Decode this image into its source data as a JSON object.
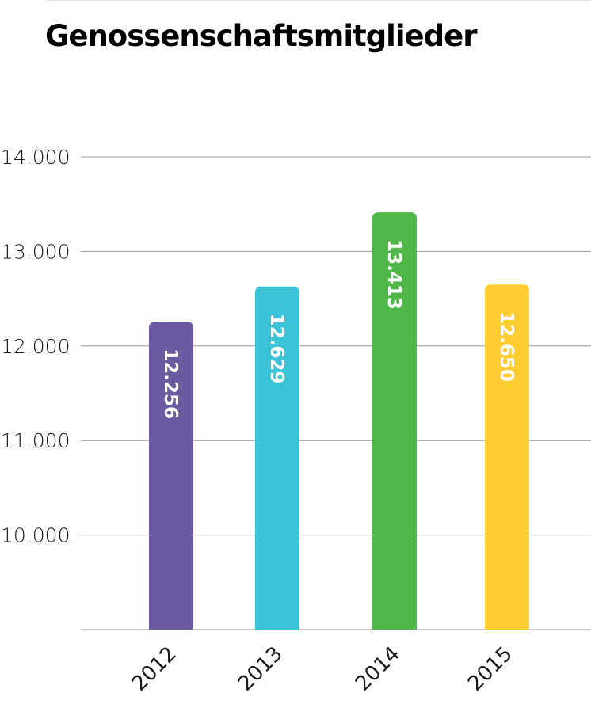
{
  "chart_data": {
    "type": "bar",
    "title": "Genossenschaftsmitglieder",
    "categories": [
      "2012",
      "2013",
      "2014",
      "2015"
    ],
    "values": [
      12256,
      12629,
      13413,
      12650
    ],
    "value_labels": [
      "12.256",
      "12.629",
      "13.413",
      "12.650"
    ],
    "colors": [
      "#6a5aa0",
      "#3cc3d8",
      "#50b848",
      "#ffcd32"
    ],
    "yticks": [
      10000,
      11000,
      12000,
      13000,
      14000
    ],
    "ytick_labels": [
      "10.000",
      "11.000",
      "12.000",
      "13.000",
      "14.000"
    ],
    "ylim": [
      9000,
      14000
    ],
    "grid": true,
    "legend": "none"
  }
}
